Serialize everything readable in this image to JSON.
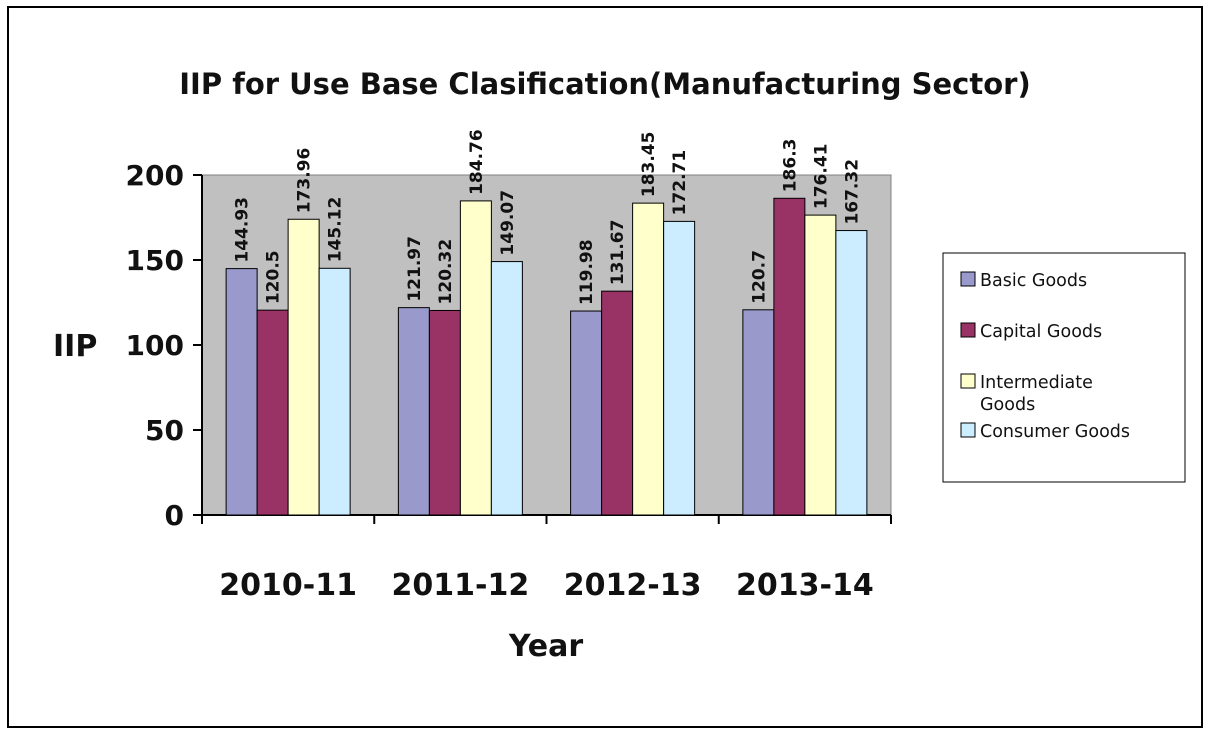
{
  "chart_data": {
    "type": "bar",
    "title": "IIP for Use Base Clasification(Manufacturing Sector)",
    "xlabel": "Year",
    "ylabel": "IIP",
    "categories": [
      "2010-11",
      "2011-12",
      "2012-13",
      "2013-14"
    ],
    "ylim": [
      0,
      200
    ],
    "yticks": [
      0,
      50,
      100,
      150,
      200
    ],
    "grid": false,
    "legend_position": "right",
    "series": [
      {
        "name": "Basic Goods",
        "color": "#9999cc",
        "values": [
          144.93,
          121.97,
          119.98,
          120.7
        ],
        "labels": [
          "144.93",
          "121.97",
          "119.98",
          "120.7"
        ]
      },
      {
        "name": "Capital Goods",
        "color": "#993366",
        "values": [
          120.5,
          120.32,
          131.67,
          186.3
        ],
        "labels": [
          "120.5",
          "120.32",
          "131.67",
          "186.3"
        ]
      },
      {
        "name": "Intermediate Goods",
        "color": "#ffffcc",
        "values": [
          173.96,
          184.76,
          183.45,
          176.41
        ],
        "labels": [
          "173.96",
          "184.76",
          "183.45",
          "176.41"
        ]
      },
      {
        "name": "Consumer Goods",
        "color": "#ccecff",
        "values": [
          145.12,
          149.07,
          172.71,
          167.32
        ],
        "labels": [
          "145.12",
          "149.07",
          "172.71",
          "167.32"
        ]
      }
    ],
    "plot_background": "#c0c0c0"
  }
}
